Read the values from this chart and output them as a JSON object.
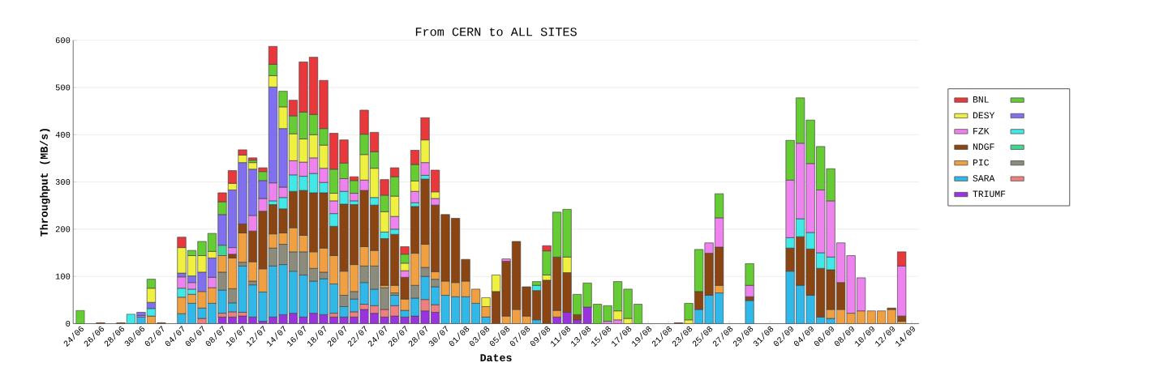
{
  "chart_data": {
    "type": "bar",
    "stacked": true,
    "title": "From CERN to ALL SITES",
    "xlabel": "Dates",
    "ylabel": "Throughput (MB/s)",
    "ylim": [
      0,
      600
    ],
    "yticks": [
      0,
      100,
      200,
      300,
      400,
      500,
      600
    ],
    "grid": "y",
    "legend": "right",
    "categories": [
      "24/06",
      null,
      "26/06",
      null,
      "28/06",
      null,
      "30/06",
      null,
      "02/07",
      null,
      "04/07",
      null,
      "06/07",
      null,
      "08/07",
      null,
      "10/07",
      null,
      "12/07",
      null,
      "14/07",
      null,
      "16/07",
      null,
      "18/07",
      null,
      "20/07",
      null,
      "22/07",
      null,
      "24/07",
      null,
      "26/07",
      null,
      "28/07",
      null,
      "30/07",
      null,
      "01/08",
      null,
      "03/08",
      null,
      "05/08",
      null,
      "07/08",
      null,
      "09/08",
      null,
      "11/08",
      null,
      "13/08",
      null,
      "15/08",
      null,
      "17/08",
      null,
      "19/08",
      null,
      "21/08",
      null,
      "23/08",
      null,
      "25/08",
      null,
      "27/08",
      null,
      "29/08",
      null,
      "31/08",
      null,
      "02/09",
      null,
      "04/09",
      null,
      "06/09",
      null,
      "08/09",
      null,
      "10/09",
      null,
      "12/09",
      null,
      "14/09"
    ],
    "series": [
      {
        "name": "TRIUMF",
        "color": "#9933dd",
        "values": [
          null,
          null,
          null,
          null,
          null,
          null,
          null,
          null,
          null,
          null,
          null,
          null,
          null,
          null,
          14,
          14,
          16,
          14,
          5,
          14,
          19,
          22,
          14,
          22,
          19,
          14,
          14,
          14,
          30,
          22,
          14,
          16,
          14,
          16,
          27,
          24,
          null,
          null,
          null,
          null,
          null,
          null,
          null,
          null,
          null,
          null,
          null,
          14,
          24,
          8,
          35,
          null,
          null,
          null,
          null,
          null,
          null,
          null,
          null,
          null,
          null,
          null,
          null,
          null,
          null,
          null,
          null,
          null,
          null,
          null,
          null,
          null,
          null,
          null,
          null,
          null,
          null,
          null,
          null,
          null,
          null,
          null,
          null
        ]
      },
      {
        "color": "#f08080",
        "values": [
          null,
          null,
          null,
          null,
          null,
          null,
          null,
          null,
          null,
          null,
          null,
          null,
          11,
          null,
          8,
          11,
          8,
          null,
          null,
          null,
          null,
          null,
          null,
          null,
          null,
          8,
          null,
          11,
          11,
          16,
          16,
          22,
          null,
          null,
          24,
          16,
          null,
          null,
          null,
          null,
          null,
          null,
          null,
          null,
          null,
          null,
          null,
          null,
          null,
          null,
          null,
          null,
          null,
          null,
          null,
          null,
          null,
          null,
          null,
          null,
          null,
          null,
          null,
          null,
          null,
          null,
          null,
          null,
          null,
          null,
          null,
          null,
          null,
          null,
          null,
          null,
          null,
          null,
          null,
          null,
          null,
          null,
          null
        ]
      },
      {
        "name": "SARA",
        "color": "#30b8e8",
        "values": [
          null,
          null,
          null,
          null,
          null,
          null,
          14,
          null,
          null,
          null,
          21,
          43,
          22,
          43,
          49,
          19,
          98,
          68,
          62,
          108,
          106,
          89,
          89,
          68,
          76,
          62,
          22,
          27,
          46,
          35,
          null,
          22,
          14,
          38,
          49,
          38,
          60,
          57,
          57,
          43,
          14,
          null,
          null,
          null,
          null,
          8,
          null,
          null,
          null,
          null,
          null,
          null,
          null,
          null,
          null,
          null,
          null,
          null,
          null,
          null,
          null,
          30,
          60,
          65,
          null,
          null,
          49,
          null,
          null,
          null,
          111,
          81,
          60,
          14,
          11,
          null,
          null,
          null,
          null,
          null,
          null,
          null,
          null
        ]
      },
      {
        "color": "#8c8c7c",
        "values": [
          null,
          null,
          null,
          null,
          null,
          null,
          null,
          null,
          null,
          null,
          null,
          null,
          null,
          null,
          38,
          30,
          8,
          8,
          null,
          38,
          43,
          41,
          49,
          27,
          14,
          null,
          24,
          16,
          35,
          49,
          46,
          5,
          null,
          27,
          19,
          16,
          null,
          null,
          null,
          null,
          null,
          null,
          null,
          null,
          null,
          null,
          null,
          null,
          null,
          null,
          null,
          null,
          null,
          null,
          null,
          null,
          null,
          null,
          null,
          null,
          null,
          null,
          null,
          null,
          null,
          null,
          null,
          null,
          null,
          null,
          null,
          null,
          null,
          null,
          null,
          null,
          null,
          null,
          null,
          null,
          null,
          null,
          null
        ]
      },
      {
        "name": "PIC",
        "color": "#f0a040",
        "values": [
          null,
          null,
          null,
          null,
          null,
          null,
          null,
          16,
          null,
          null,
          35,
          19,
          35,
          33,
          35,
          65,
          62,
          41,
          49,
          30,
          24,
          51,
          35,
          35,
          51,
          60,
          51,
          57,
          41,
          33,
          5,
          16,
          24,
          68,
          49,
          16,
          30,
          30,
          33,
          30,
          22,
          null,
          16,
          30,
          16,
          null,
          null,
          14,
          null,
          null,
          null,
          null,
          null,
          null,
          null,
          null,
          null,
          null,
          null,
          null,
          null,
          null,
          null,
          16,
          null,
          null,
          null,
          null,
          null,
          null,
          null,
          null,
          null,
          null,
          19,
          30,
          22,
          27,
          27,
          27,
          30,
          5,
          null
        ]
      },
      {
        "name": "NDGF",
        "color": "#8b4513",
        "values": [
          null,
          null,
          2,
          null,
          2,
          null,
          null,
          null,
          2,
          null,
          null,
          null,
          null,
          null,
          null,
          8,
          19,
          65,
          122,
          62,
          51,
          77,
          95,
          125,
          117,
          62,
          142,
          127,
          119,
          96,
          99,
          108,
          46,
          99,
          138,
          141,
          141,
          136,
          46,
          null,
          null,
          68,
          116,
          144,
          62,
          62,
          92,
          113,
          84,
          11,
          null,
          null,
          null,
          null,
          null,
          null,
          null,
          null,
          null,
          2,
          null,
          38,
          89,
          81,
          null,
          null,
          8,
          null,
          null,
          null,
          49,
          103,
          98,
          103,
          84,
          57,
          null,
          null,
          null,
          null,
          3,
          11,
          null
        ]
      },
      {
        "color": "#40d890",
        "values": [
          null,
          null,
          null,
          null,
          null,
          null,
          null,
          null,
          null,
          null,
          null,
          null,
          null,
          null,
          22,
          null,
          null,
          null,
          null,
          null,
          null,
          null,
          null,
          null,
          null,
          null,
          null,
          null,
          null,
          null,
          null,
          null,
          null,
          null,
          null,
          null,
          null,
          null,
          null,
          null,
          null,
          null,
          null,
          null,
          null,
          null,
          null,
          null,
          null,
          null,
          null,
          null,
          null,
          null,
          null,
          null,
          null,
          null,
          null,
          null,
          null,
          null,
          null,
          null,
          null,
          null,
          null,
          null,
          null,
          null,
          null,
          null,
          null,
          null,
          null,
          null,
          null,
          null,
          null,
          null,
          null,
          null,
          null
        ]
      },
      {
        "color": "#40e8e8",
        "values": [
          null,
          null,
          null,
          null,
          null,
          20,
          null,
          16,
          null,
          null,
          19,
          11,
          null,
          null,
          null,
          null,
          null,
          null,
          null,
          8,
          24,
          35,
          30,
          41,
          22,
          27,
          27,
          8,
          null,
          16,
          14,
          11,
          null,
          8,
          8,
          null,
          null,
          null,
          null,
          null,
          null,
          null,
          null,
          null,
          null,
          11,
          null,
          null,
          null,
          null,
          null,
          null,
          null,
          null,
          null,
          null,
          null,
          null,
          null,
          null,
          null,
          null,
          null,
          null,
          null,
          null,
          null,
          null,
          null,
          null,
          22,
          38,
          35,
          33,
          27,
          null,
          null,
          null,
          null,
          null,
          null,
          null,
          null
        ]
      },
      {
        "name": "FZK",
        "color": "#ee82ee",
        "values": [
          null,
          null,
          null,
          null,
          null,
          null,
          3,
          null,
          null,
          null,
          24,
          14,
          null,
          22,
          null,
          14,
          null,
          33,
          27,
          38,
          22,
          30,
          30,
          33,
          30,
          27,
          27,
          16,
          22,
          null,
          null,
          27,
          14,
          24,
          27,
          14,
          null,
          null,
          null,
          null,
          null,
          null,
          5,
          null,
          null,
          null,
          null,
          null,
          null,
          null,
          null,
          null,
          5,
          8,
          null,
          null,
          null,
          null,
          null,
          null,
          null,
          null,
          22,
          62,
          null,
          null,
          24,
          null,
          null,
          null,
          122,
          160,
          146,
          133,
          119,
          84,
          122,
          70,
          null,
          null,
          null,
          106,
          null
        ]
      },
      {
        "color": "#8070f0",
        "values": [
          null,
          null,
          null,
          null,
          null,
          null,
          7,
          13,
          null,
          null,
          8,
          14,
          41,
          41,
          65,
          122,
          130,
          98,
          38,
          203,
          124,
          null,
          null,
          null,
          null,
          null,
          null,
          null,
          null,
          null,
          null,
          null,
          null,
          null,
          null,
          null,
          null,
          null,
          null,
          null,
          null,
          null,
          null,
          null,
          null,
          null,
          null,
          null,
          null,
          null,
          null,
          null,
          null,
          null,
          null,
          null,
          null,
          null,
          null,
          null,
          null,
          null,
          null,
          null,
          null,
          null,
          null,
          null,
          null,
          null,
          null,
          null,
          null,
          null,
          null,
          null,
          null,
          null,
          null,
          null,
          null,
          null,
          null
        ]
      },
      {
        "name": "DESY",
        "color": "#f0f040",
        "values": [
          null,
          null,
          null,
          null,
          null,
          null,
          null,
          30,
          null,
          null,
          54,
          43,
          35,
          14,
          null,
          14,
          16,
          14,
          null,
          24,
          46,
          57,
          49,
          49,
          49,
          16,
          null,
          null,
          54,
          62,
          43,
          43,
          16,
          22,
          48,
          14,
          null,
          null,
          null,
          null,
          19,
          35,
          null,
          null,
          null,
          null,
          11,
          null,
          33,
          null,
          null,
          null,
          null,
          19,
          11,
          null,
          null,
          null,
          null,
          null,
          8,
          null,
          null,
          null,
          null,
          null,
          null,
          null,
          null,
          null,
          null,
          null,
          null,
          null,
          null,
          null,
          null,
          null,
          null,
          null,
          null,
          null,
          null
        ]
      },
      {
        "color": "#66cc33",
        "values": [
          28,
          null,
          null,
          null,
          null,
          null,
          null,
          19,
          null,
          null,
          null,
          11,
          30,
          38,
          27,
          null,
          null,
          5,
          19,
          24,
          33,
          38,
          57,
          43,
          35,
          51,
          33,
          27,
          43,
          35,
          35,
          41,
          19,
          35,
          null,
          null,
          null,
          null,
          null,
          null,
          null,
          null,
          null,
          null,
          null,
          8,
          51,
          95,
          101,
          43,
          51,
          41,
          33,
          62,
          62,
          41,
          null,
          null,
          null,
          null,
          35,
          89,
          null,
          51,
          null,
          null,
          46,
          null,
          null,
          null,
          84,
          96,
          92,
          92,
          68,
          null,
          null,
          null,
          null,
          null,
          null,
          null,
          null
        ]
      },
      {
        "name": "BNL",
        "color": "#e8383b",
        "values": [
          null,
          null,
          null,
          null,
          null,
          null,
          null,
          null,
          null,
          null,
          22,
          null,
          null,
          null,
          19,
          27,
          11,
          5,
          8,
          38,
          null,
          33,
          106,
          121,
          102,
          76,
          49,
          8,
          51,
          41,
          33,
          19,
          16,
          30,
          47,
          46,
          null,
          null,
          null,
          null,
          null,
          null,
          null,
          null,
          null,
          null,
          11,
          null,
          null,
          null,
          null,
          null,
          null,
          null,
          null,
          null,
          null,
          null,
          null,
          null,
          null,
          null,
          null,
          null,
          null,
          null,
          null,
          null,
          null,
          null,
          null,
          null,
          null,
          null,
          null,
          null,
          null,
          null,
          null,
          null,
          null,
          30,
          null
        ]
      }
    ]
  }
}
